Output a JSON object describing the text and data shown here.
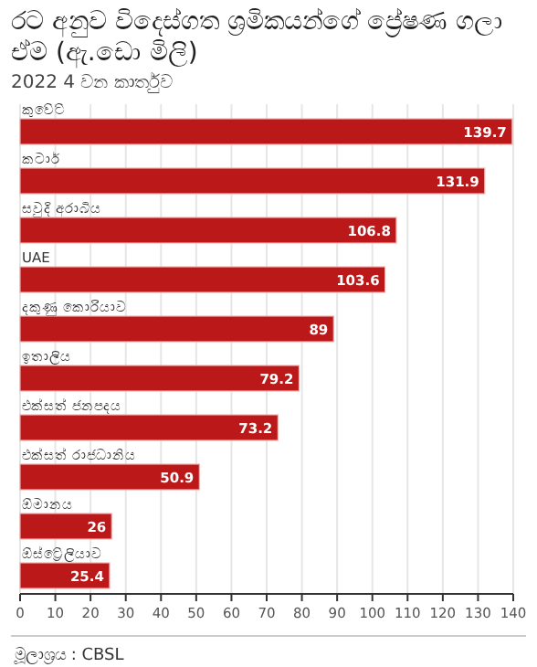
{
  "chart_data": {
    "type": "bar",
    "orientation": "horizontal",
    "title": "රට අනුව විදෙස්ගත ශ්‍රමිකයන්ගේ ප්‍රේෂණ ගලා ඒම (ඇ.ඩො මිලි)",
    "subtitle": "2022 4 වන කාර්තුව",
    "categories": [
      "කුවේට්",
      "කටාර්",
      "සවුදි අරාබිය",
      "UAE",
      "දකුණු කොරියාව",
      "ඉතාලිය",
      "එක්සත් ජනපදය",
      "එක්සත් රාජධානිය",
      "ඕමානය",
      "ඕස්ට්‍රේලියාව"
    ],
    "values": [
      139.7,
      131.9,
      106.8,
      103.6,
      89,
      79.2,
      73.2,
      50.9,
      26,
      25.4
    ],
    "color": "#bb1919",
    "data_labels": true,
    "grid": "x",
    "xlim": [
      0,
      140
    ],
    "xticks": [
      0,
      10,
      20,
      30,
      40,
      50,
      60,
      70,
      80,
      90,
      100,
      110,
      120,
      130,
      140
    ],
    "annotations": [
      "මූලාශ්‍රය : CBSL"
    ]
  }
}
